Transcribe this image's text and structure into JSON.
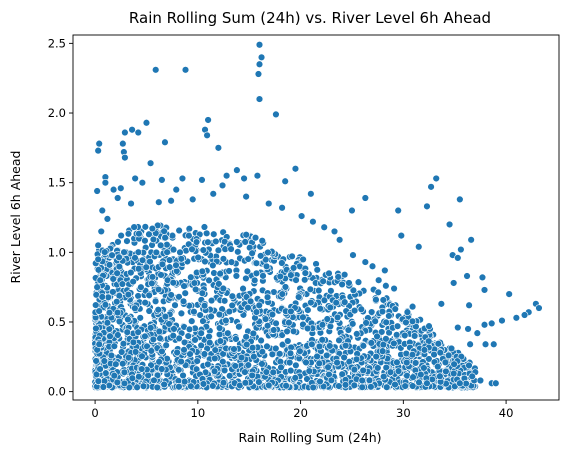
{
  "chart_data": {
    "type": "scatter",
    "title": "Rain Rolling Sum (24h) vs. River Level 6h Ahead",
    "xlabel": "Rain Rolling Sum (24h)",
    "ylabel": "River Level 6h Ahead",
    "xlim": [
      -2.15,
      45.15
    ],
    "ylim": [
      -0.06,
      2.56
    ],
    "xticks": [
      0,
      10,
      20,
      30,
      40
    ],
    "xtick_labels": [
      "0",
      "10",
      "20",
      "30",
      "40"
    ],
    "yticks": [
      0.0,
      0.5,
      1.0,
      1.5,
      2.0,
      2.5
    ],
    "ytick_labels": [
      "0.0",
      "0.5",
      "1.0",
      "1.5",
      "2.0",
      "2.5"
    ],
    "grid": false,
    "marker_color": "#1f77b4",
    "marker_edge_color": "#ffffff",
    "series": [
      {
        "points": [
          [
            16.0,
            2.49
          ],
          [
            16.2,
            2.4
          ],
          [
            16.0,
            2.35
          ],
          [
            15.9,
            2.28
          ],
          [
            16.0,
            2.1
          ],
          [
            5.9,
            2.31
          ],
          [
            8.8,
            2.31
          ],
          [
            17.6,
            1.99
          ],
          [
            11.0,
            1.95
          ],
          [
            5.0,
            1.93
          ],
          [
            3.6,
            1.88
          ],
          [
            4.2,
            1.86
          ],
          [
            2.9,
            1.86
          ],
          [
            0.4,
            1.78
          ],
          [
            0.3,
            1.73
          ],
          [
            6.8,
            1.79
          ],
          [
            2.7,
            1.78
          ],
          [
            2.8,
            1.72
          ],
          [
            2.9,
            1.68
          ],
          [
            10.7,
            1.88
          ],
          [
            10.9,
            1.84
          ],
          [
            12.0,
            1.75
          ],
          [
            5.4,
            1.64
          ],
          [
            19.5,
            1.6
          ],
          [
            13.8,
            1.59
          ],
          [
            1.0,
            1.54
          ],
          [
            1.0,
            1.5
          ],
          [
            0.2,
            1.44
          ],
          [
            1.8,
            1.45
          ],
          [
            2.5,
            1.46
          ],
          [
            3.9,
            1.53
          ],
          [
            4.6,
            1.5
          ],
          [
            6.5,
            1.52
          ],
          [
            8.5,
            1.53
          ],
          [
            10.4,
            1.52
          ],
          [
            12.8,
            1.55
          ],
          [
            14.5,
            1.53
          ],
          [
            15.8,
            1.55
          ],
          [
            18.5,
            1.51
          ],
          [
            21.0,
            1.42
          ],
          [
            33.2,
            1.53
          ],
          [
            32.7,
            1.47
          ],
          [
            26.3,
            1.39
          ],
          [
            25.0,
            1.3
          ],
          [
            29.5,
            1.3
          ],
          [
            32.3,
            1.33
          ],
          [
            35.5,
            1.38
          ],
          [
            34.5,
            1.2
          ],
          [
            29.8,
            1.12
          ],
          [
            31.5,
            1.04
          ],
          [
            35.6,
            1.02
          ],
          [
            36.6,
            1.09
          ],
          [
            34.8,
            0.98
          ],
          [
            35.3,
            0.96
          ],
          [
            36.2,
            0.83
          ],
          [
            37.7,
            0.82
          ],
          [
            34.9,
            0.78
          ],
          [
            40.3,
            0.7
          ],
          [
            42.9,
            0.63
          ],
          [
            43.2,
            0.6
          ],
          [
            42.2,
            0.57
          ],
          [
            41.8,
            0.55
          ],
          [
            41.0,
            0.53
          ],
          [
            39.6,
            0.51
          ],
          [
            38.6,
            0.49
          ],
          [
            37.9,
            0.48
          ],
          [
            37.2,
            0.42
          ],
          [
            36.3,
            0.45
          ],
          [
            35.3,
            0.46
          ],
          [
            38.0,
            0.34
          ],
          [
            38.8,
            0.34
          ],
          [
            36.5,
            0.34
          ],
          [
            37.9,
            0.73
          ],
          [
            36.4,
            0.62
          ],
          [
            33.7,
            0.63
          ],
          [
            32.5,
            0.47
          ],
          [
            30.9,
            0.61
          ],
          [
            31.1,
            0.4
          ],
          [
            37.0,
            0.14
          ],
          [
            37.5,
            0.08
          ],
          [
            38.6,
            0.06
          ],
          [
            39.0,
            0.06
          ],
          [
            35.5,
            0.06
          ],
          [
            36.7,
            0.11
          ],
          [
            34.9,
            0.13
          ],
          [
            32.3,
            0.06
          ],
          [
            26.0,
            0.08
          ],
          [
            32.0,
            0.17
          ],
          [
            34.1,
            0.21
          ],
          [
            33.6,
            0.28
          ],
          [
            29.1,
            0.74
          ],
          [
            28.3,
            0.76
          ],
          [
            27.6,
            0.8
          ],
          [
            28.2,
            0.87
          ],
          [
            27.0,
            0.9
          ],
          [
            26.3,
            0.93
          ],
          [
            25.1,
            0.98
          ],
          [
            23.3,
            1.15
          ],
          [
            22.3,
            1.18
          ],
          [
            23.8,
            1.09
          ],
          [
            21.2,
            1.22
          ],
          [
            20.1,
            1.26
          ],
          [
            18.2,
            1.32
          ],
          [
            16.9,
            1.35
          ],
          [
            14.7,
            1.4
          ],
          [
            12.4,
            1.48
          ],
          [
            11.5,
            1.42
          ],
          [
            9.5,
            1.38
          ],
          [
            7.9,
            1.45
          ],
          [
            7.4,
            1.37
          ],
          [
            6.2,
            1.36
          ],
          [
            3.5,
            1.35
          ],
          [
            2.2,
            1.39
          ],
          [
            0.7,
            1.3
          ],
          [
            1.2,
            1.24
          ],
          [
            0.6,
            1.15
          ],
          [
            0.3,
            1.05
          ],
          [
            0.3,
            0.95
          ],
          [
            1.4,
            0.91
          ],
          [
            0.5,
            0.8
          ],
          [
            0.2,
            0.75
          ],
          [
            0.7,
            0.68
          ],
          [
            0.1,
            0.22
          ],
          [
            0.2,
            0.3
          ],
          [
            0.4,
            0.34
          ]
        ]
      }
    ],
    "dense_band_upper_envelope": [
      [
        0,
        1.0
      ],
      [
        2,
        1.1
      ],
      [
        4,
        1.2
      ],
      [
        6,
        1.2
      ],
      [
        8,
        1.2
      ],
      [
        10,
        1.2
      ],
      [
        12,
        1.15
      ],
      [
        14,
        1.15
      ],
      [
        16,
        1.1
      ],
      [
        18,
        1.0
      ],
      [
        20,
        0.97
      ],
      [
        22,
        0.9
      ],
      [
        24,
        0.85
      ],
      [
        26,
        0.78
      ],
      [
        28,
        0.7
      ],
      [
        30,
        0.6
      ],
      [
        32,
        0.5
      ],
      [
        34,
        0.35
      ],
      [
        36,
        0.25
      ],
      [
        37,
        0.18
      ]
    ]
  }
}
